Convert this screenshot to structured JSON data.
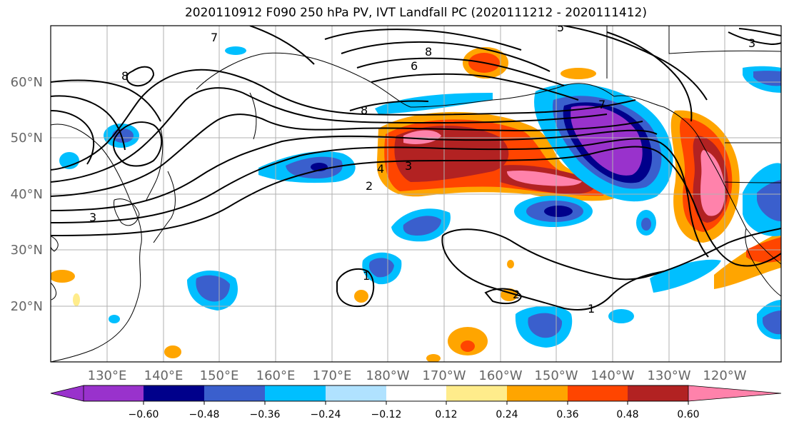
{
  "title": "2020110912 F090 250 hPa PV, IVT Landfall PC (2020111212 - 2020111412)",
  "lat_labels": [
    "60°N",
    "50°N",
    "40°N",
    "30°N",
    "20°N"
  ],
  "lon_labels": [
    "130°E",
    "140°E",
    "150°E",
    "160°E",
    "170°E",
    "180°W",
    "170°W",
    "160°W",
    "150°W",
    "140°W",
    "130°W",
    "120°W"
  ],
  "colorbar": {
    "colors": [
      "#9932cc",
      "#00008b",
      "#3a5fcd",
      "#00bfff",
      "#b0e2ff",
      "#ffffff",
      "#ffec8b",
      "#ffa500",
      "#ff4500",
      "#b22222",
      "#ff82ab"
    ],
    "tick_labels": [
      "−0.60",
      "−0.48",
      "−0.36",
      "−0.24",
      "−0.12",
      "0.12",
      "0.24",
      "0.36",
      "0.48",
      "0.60"
    ]
  },
  "contour_labels": [
    "8",
    "7",
    "6",
    "8",
    "5",
    "3",
    "8",
    "7",
    "4",
    "3",
    "2",
    "1",
    "1",
    "2",
    "3"
  ]
}
